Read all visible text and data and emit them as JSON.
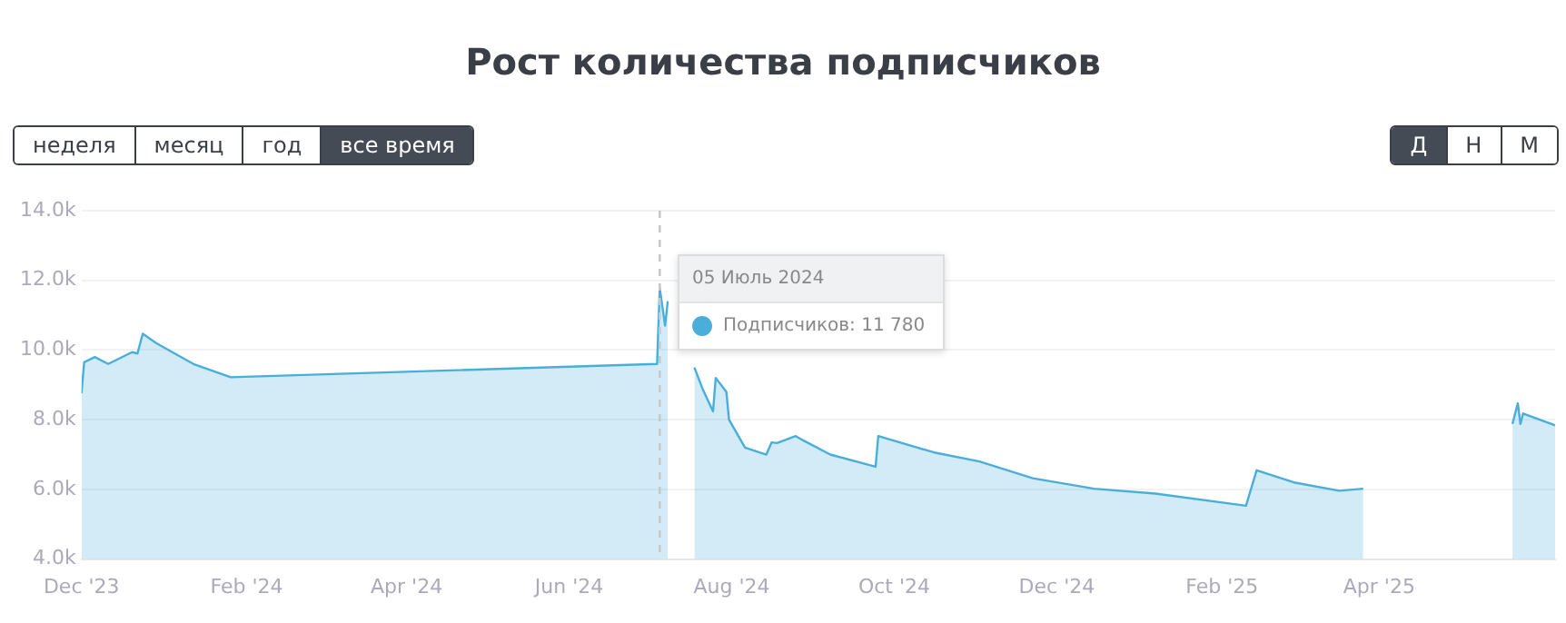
{
  "chart_data": {
    "type": "area",
    "title": "Рост количества подписчиков",
    "x": [
      "2023-12-01",
      "2023-12-02",
      "2023-12-06",
      "2023-12-11",
      "2023-12-20",
      "2023-12-22",
      "2023-12-24",
      "2023-12-29",
      "2024-01-12",
      "2024-01-26",
      "2024-07-04",
      "2024-07-05",
      "2024-07-07",
      "2024-07-08",
      "2024-07-10",
      "2024-07-18",
      "2024-07-21",
      "2024-07-25",
      "2024-07-26",
      "2024-07-30",
      "2024-07-31",
      "2024-08-06",
      "2024-08-14",
      "2024-08-16",
      "2024-08-18",
      "2024-08-25",
      "2024-08-28",
      "2024-09-07",
      "2024-09-24",
      "2024-09-25",
      "2024-10-16",
      "2024-11-02",
      "2024-11-22",
      "2024-12-15",
      "2025-01-07",
      "2025-02-10",
      "2025-02-14",
      "2025-02-28",
      "2025-03-17",
      "2025-03-26",
      "2025-04-23",
      "2025-05-21",
      "2025-05-23",
      "2025-05-24",
      "2025-05-25",
      "2025-06-06"
    ],
    "series": [
      {
        "color": "#4aaedb",
        "values": [
          8760,
          9650,
          9800,
          9600,
          9940,
          9900,
          10470,
          10200,
          9600,
          9220,
          9600,
          11780,
          10700,
          11400,
          null,
          9500,
          8900,
          8240,
          9200,
          8800,
          8000,
          7200,
          7000,
          7350,
          7330,
          7530,
          7400,
          7000,
          6650,
          7530,
          7060,
          6800,
          6320,
          6020,
          5880,
          5530,
          6550,
          6200,
          5960,
          6020,
          null,
          7880,
          8470,
          7880,
          8180,
          7840
        ]
      }
    ],
    "xlim": [
      "2023-12-01",
      "2025-06-06"
    ],
    "xticks": [
      {
        "value": "2023-12-01",
        "label": "Dec '23"
      },
      {
        "value": "2024-02-01",
        "label": "Feb '24"
      },
      {
        "value": "2024-04-01",
        "label": "Apr '24"
      },
      {
        "value": "2024-06-01",
        "label": "Jun '24"
      },
      {
        "value": "2024-08-01",
        "label": "Aug '24"
      },
      {
        "value": "2024-10-01",
        "label": "Oct '24"
      },
      {
        "value": "2024-12-01",
        "label": "Dec '24"
      },
      {
        "value": "2025-02-01",
        "label": "Feb '25"
      },
      {
        "value": "2025-04-01",
        "label": "Apr '25"
      }
    ],
    "ylim": [
      4000,
      14000
    ],
    "yticks": [
      {
        "value": 4000,
        "label": "4.0k"
      },
      {
        "value": 6000,
        "label": "6.0k"
      },
      {
        "value": 8000,
        "label": "8.0k"
      },
      {
        "value": 10000,
        "label": "10.0k"
      },
      {
        "value": 12000,
        "label": "12.0k"
      },
      {
        "value": 14000,
        "label": "14.0k"
      }
    ],
    "grid": "y",
    "legend": false,
    "marker": "none",
    "ref_lines": [
      {
        "axis": "x",
        "value": "2024-07-05",
        "color": "#c8c8c8",
        "line_style": "dashed"
      }
    ],
    "annotations": [
      "05 Июль 2024",
      "Подписчиков: 11 780",
      "неделя",
      "месяц",
      "год",
      "все время",
      "Д",
      "Н",
      "М"
    ]
  }
}
